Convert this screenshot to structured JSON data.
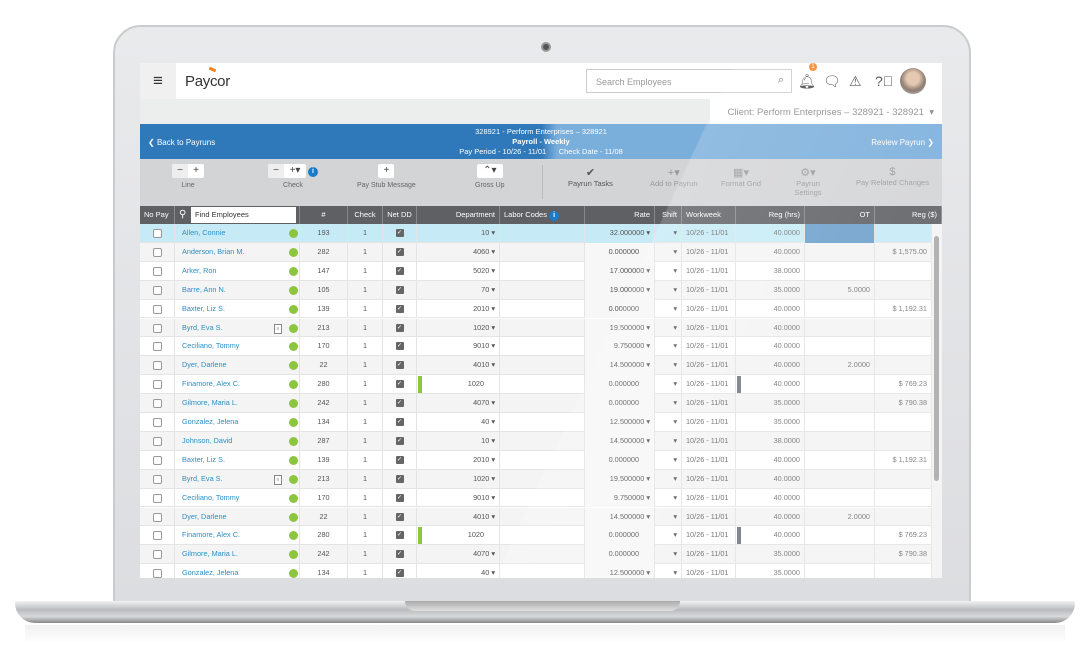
{
  "app": {
    "logo": "Paycor",
    "menu_icon": "hamburger-icon"
  },
  "search": {
    "placeholder": "Search Employees"
  },
  "notifications": {
    "count": "1"
  },
  "client": {
    "label": "Client: Perform Enterprises – 328921 - 328921"
  },
  "payrun": {
    "line1": "328921 - Perform Enterprises – 328921",
    "title": "Payroll - Weekly",
    "pay_period": "Pay Period - 10/26 - 11/01",
    "check_date": "Check Date - 11/08",
    "back": "Back to Payruns",
    "review": "Review Payrun"
  },
  "toolbar": {
    "line": "Line",
    "check": "Check",
    "pay_stub": "Pay Stub Message",
    "gross_up": "Gross Up",
    "payrun_tasks": "Payrun Tasks",
    "add_to_payrun": "Add to Payrun",
    "format_grid": "Format Grid",
    "payrun_settings": "Payrun Settings",
    "pay_related": "Pay Related Changes"
  },
  "grid": {
    "headers": {
      "nopay": "No Pay",
      "find": "Find Employees",
      "num": "#",
      "check": "Check",
      "netdd": "Net DD",
      "dept": "Department",
      "labor": "Labor Codes",
      "rate": "Rate",
      "shift": "Shift",
      "workweek": "Workweek",
      "reg": "Reg (hrs)",
      "ot": "OT",
      "regpay": "Reg ($)"
    },
    "colors": {
      "status": "#8cc63f",
      "accent": "#2f78b9",
      "selected": "#c6ebf7"
    },
    "rows": [
      {
        "name": "Allen, Connie",
        "num": "193",
        "check": "1",
        "dept": "10",
        "rate": "32.000000",
        "ww": "10/26 - 11/01",
        "reg": "40.0000",
        "ot": "",
        "pay": "",
        "selected": true
      },
      {
        "name": "Anderson, Brian M.",
        "num": "282",
        "check": "1",
        "dept": "4060",
        "rate": "0.000000",
        "ww": "10/26 - 11/01",
        "reg": "40.0000",
        "ot": "",
        "pay": "$ 1,575.00"
      },
      {
        "name": "Arker, Ron",
        "num": "147",
        "check": "1",
        "dept": "5020",
        "rate": "17.000000",
        "ww": "10/26 - 11/01",
        "reg": "38.0000",
        "ot": "",
        "pay": ""
      },
      {
        "name": "Barre, Ann N.",
        "num": "105",
        "check": "1",
        "dept": "70",
        "rate": "19.000000",
        "ww": "10/26 - 11/01",
        "reg": "35.0000",
        "ot": "5.0000",
        "pay": ""
      },
      {
        "name": "Baxter, Liz S.",
        "num": "139",
        "check": "1",
        "dept": "2010",
        "rate": "0.000000",
        "ww": "10/26 - 11/01",
        "reg": "40.0000",
        "ot": "",
        "pay": "$ 1,192.31"
      },
      {
        "name": "Byrd, Eva S.",
        "num": "213",
        "check": "1",
        "dept": "1020",
        "rate": "19.500000",
        "ww": "10/26 - 11/01",
        "reg": "40.0000",
        "ot": "",
        "pay": "",
        "doc": true
      },
      {
        "name": "Ceciliano, Tommy",
        "num": "170",
        "check": "1",
        "dept": "9010",
        "rate": "9.750000",
        "ww": "10/26 - 11/01",
        "reg": "40.0000",
        "ot": "",
        "pay": ""
      },
      {
        "name": "Dyer, Darlene",
        "num": "22",
        "check": "1",
        "dept": "4010",
        "rate": "14.500000",
        "ww": "10/26 - 11/01",
        "reg": "40.0000",
        "ot": "2.0000",
        "pay": ""
      },
      {
        "name": "Finamore, Alex C.",
        "num": "280",
        "check": "1",
        "dept": "1020",
        "rate": "0.000000",
        "ww": "10/26 - 11/01",
        "reg": "40.0000",
        "ot": "",
        "pay": "$ 769.23",
        "bars": true
      },
      {
        "name": "Gilmore, Maria L.",
        "num": "242",
        "check": "1",
        "dept": "4070",
        "rate": "0.000000",
        "ww": "10/26 - 11/01",
        "reg": "35.0000",
        "ot": "",
        "pay": "$ 790.38"
      },
      {
        "name": "Gonzalez, Jelena",
        "num": "134",
        "check": "1",
        "dept": "40",
        "rate": "12.500000",
        "ww": "10/26 - 11/01",
        "reg": "35.0000",
        "ot": "",
        "pay": ""
      },
      {
        "name": "Johnson, David",
        "num": "287",
        "check": "1",
        "dept": "10",
        "rate": "14.500000",
        "ww": "10/26 - 11/01",
        "reg": "38.0000",
        "ot": "",
        "pay": ""
      },
      {
        "name": "Baxter, Liz S.",
        "num": "139",
        "check": "1",
        "dept": "2010",
        "rate": "0.000000",
        "ww": "10/26 - 11/01",
        "reg": "40.0000",
        "ot": "",
        "pay": "$ 1,192.31"
      },
      {
        "name": "Byrd, Eva S.",
        "num": "213",
        "check": "1",
        "dept": "1020",
        "rate": "19.500000",
        "ww": "10/26 - 11/01",
        "reg": "40.0000",
        "ot": "",
        "pay": "",
        "doc": true
      },
      {
        "name": "Ceciliano, Tommy",
        "num": "170",
        "check": "1",
        "dept": "9010",
        "rate": "9.750000",
        "ww": "10/26 - 11/01",
        "reg": "40.0000",
        "ot": "",
        "pay": ""
      },
      {
        "name": "Dyer, Darlene",
        "num": "22",
        "check": "1",
        "dept": "4010",
        "rate": "14.500000",
        "ww": "10/26 - 11/01",
        "reg": "40.0000",
        "ot": "2.0000",
        "pay": ""
      },
      {
        "name": "Finamore, Alex C.",
        "num": "280",
        "check": "1",
        "dept": "1020",
        "rate": "0.000000",
        "ww": "10/26 - 11/01",
        "reg": "40.0000",
        "ot": "",
        "pay": "$ 769.23",
        "bars": true
      },
      {
        "name": "Gilmore, Maria L.",
        "num": "242",
        "check": "1",
        "dept": "4070",
        "rate": "0.000000",
        "ww": "10/26 - 11/01",
        "reg": "35.0000",
        "ot": "",
        "pay": "$ 790.38"
      },
      {
        "name": "Gonzalez, Jelena",
        "num": "134",
        "check": "1",
        "dept": "40",
        "rate": "12.500000",
        "ww": "10/26 - 11/01",
        "reg": "35.0000",
        "ot": "",
        "pay": ""
      }
    ]
  }
}
